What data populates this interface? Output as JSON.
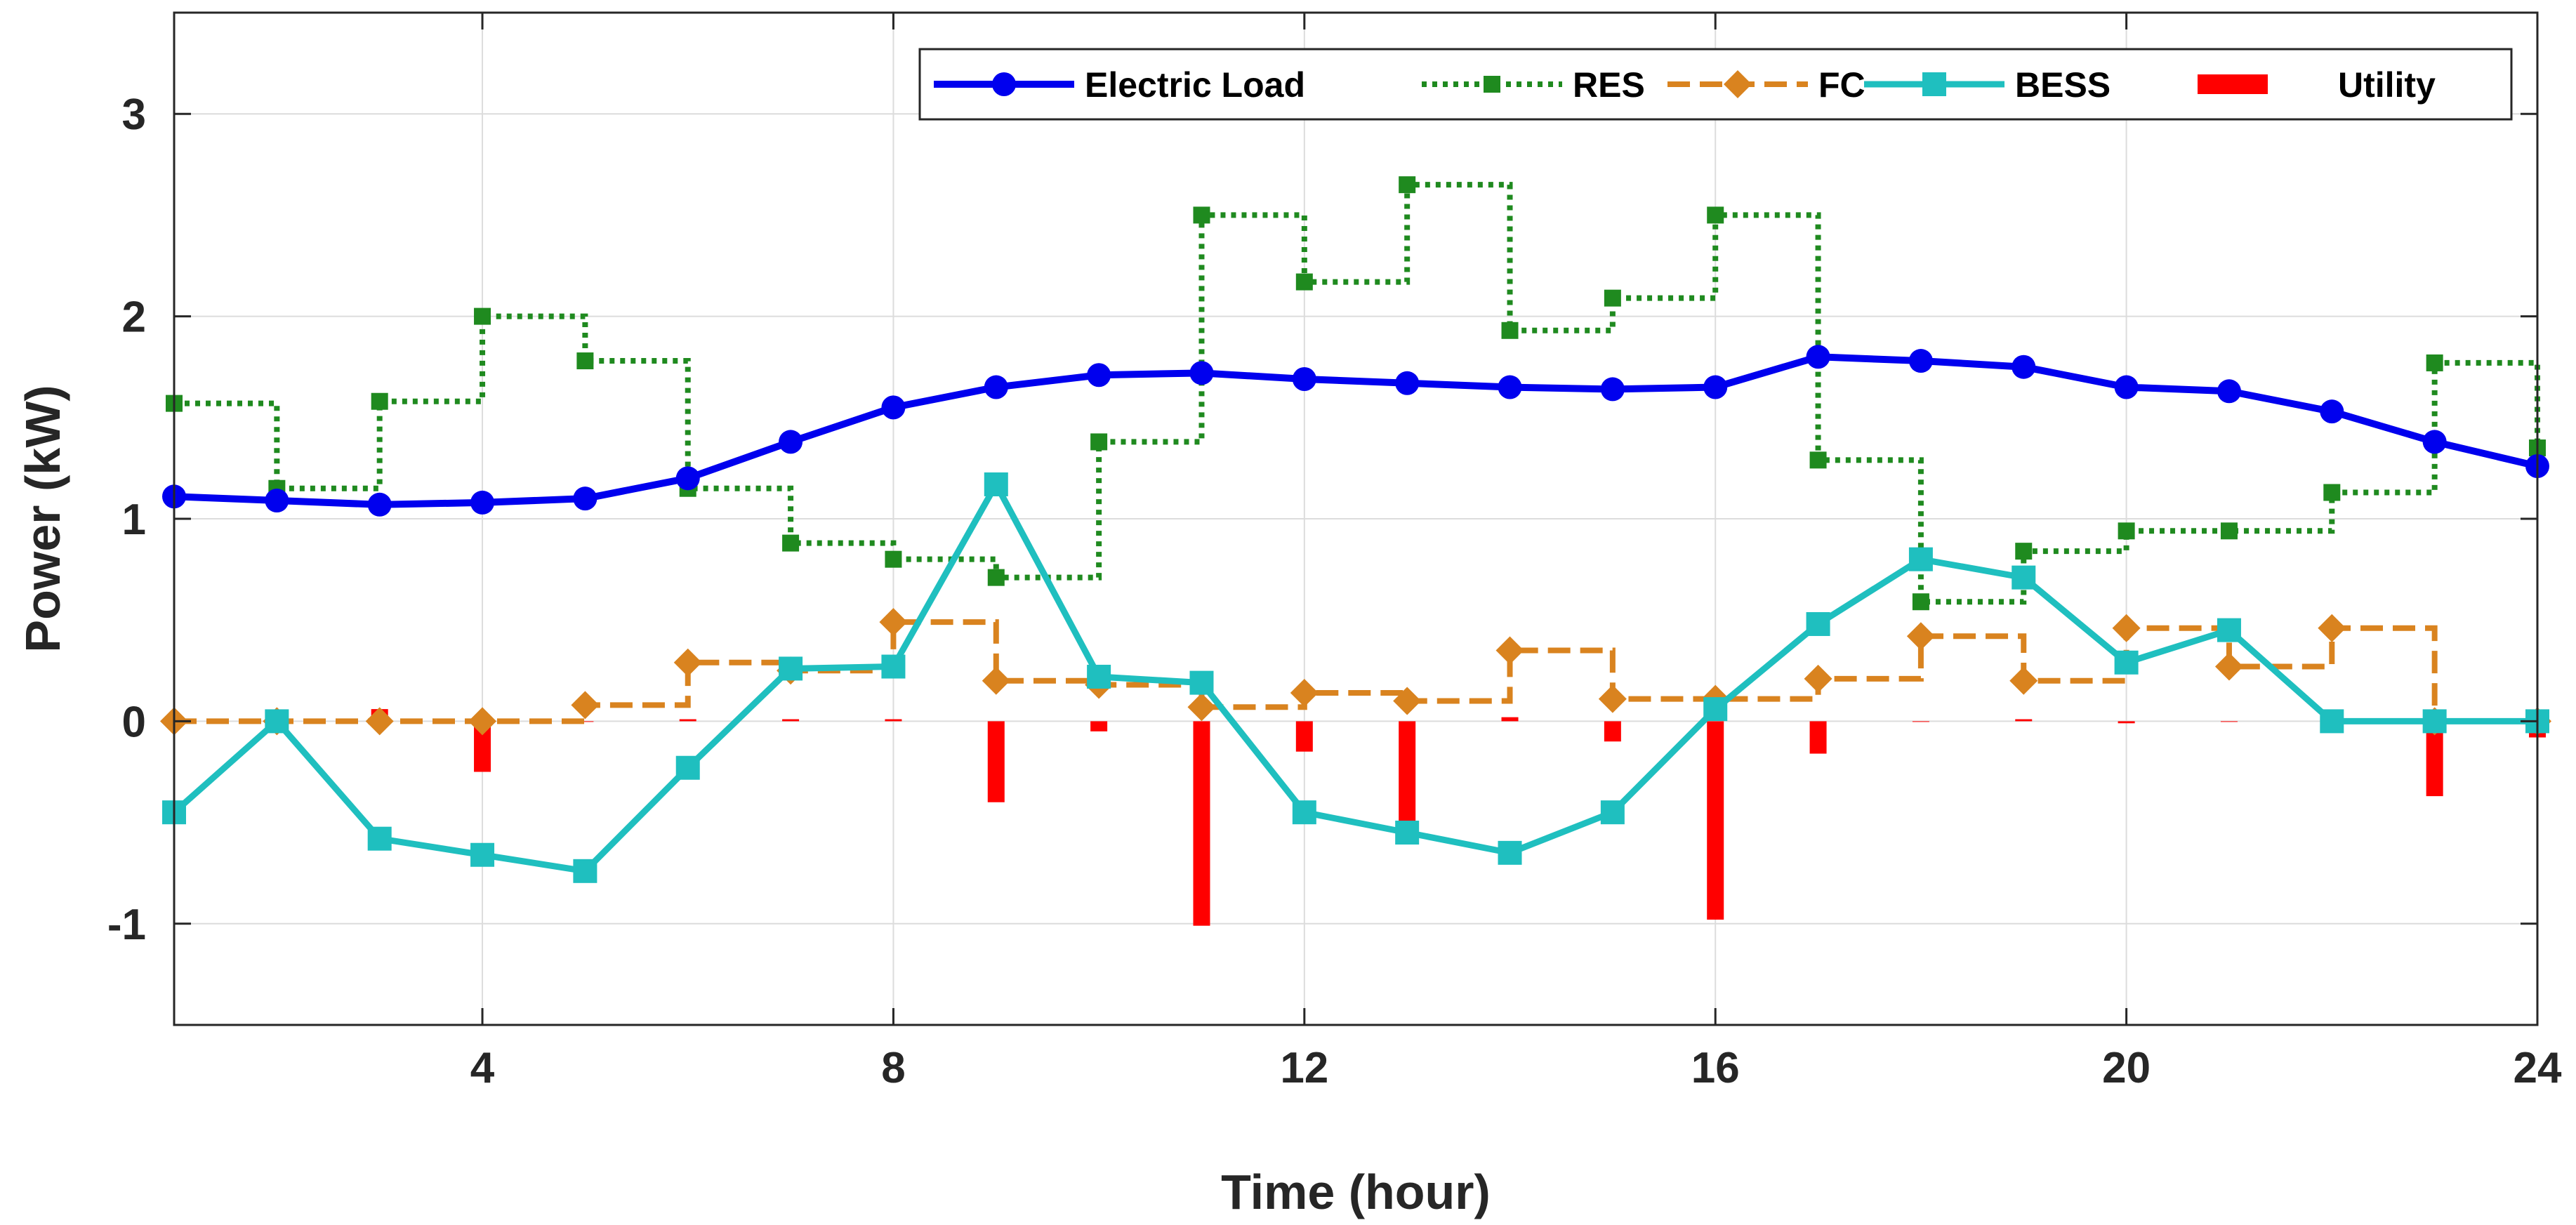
{
  "chart_data": {
    "type": "line",
    "xlabel": "Time (hour)",
    "ylabel": "Power (kW)",
    "xlim": [
      1,
      24
    ],
    "ylim": [
      -1.5,
      3.5
    ],
    "xticks": [
      4,
      8,
      12,
      16,
      20,
      24
    ],
    "yticks": [
      -1,
      0,
      1,
      2,
      3
    ],
    "grid": true,
    "legend_position": "top-right",
    "x": [
      1,
      2,
      3,
      4,
      5,
      6,
      7,
      8,
      9,
      10,
      11,
      12,
      13,
      14,
      15,
      16,
      17,
      18,
      19,
      20,
      21,
      22,
      23,
      24
    ],
    "series": [
      {
        "name": "Electric Load",
        "style": "line-circle",
        "color": "#0000ee",
        "values": [
          1.11,
          1.09,
          1.07,
          1.08,
          1.1,
          1.2,
          1.38,
          1.55,
          1.65,
          1.71,
          1.72,
          1.69,
          1.67,
          1.65,
          1.64,
          1.65,
          1.8,
          1.78,
          1.75,
          1.65,
          1.63,
          1.53,
          1.38,
          1.26
        ]
      },
      {
        "name": "RES",
        "style": "stairs-dotted-square",
        "color": "#1f8a1f",
        "values": [
          1.57,
          1.15,
          1.58,
          2.0,
          1.78,
          1.15,
          0.88,
          0.8,
          0.71,
          1.38,
          2.5,
          2.17,
          2.65,
          1.93,
          2.09,
          2.5,
          1.29,
          0.59,
          0.84,
          0.94,
          0.94,
          1.13,
          1.77,
          1.35
        ]
      },
      {
        "name": "FC",
        "style": "stairs-dashed-diamond",
        "color": "#d9831f",
        "values": [
          0.0,
          0.0,
          0.0,
          0.0,
          0.08,
          0.29,
          0.25,
          0.49,
          0.2,
          0.18,
          0.07,
          0.14,
          0.1,
          0.35,
          0.11,
          0.11,
          0.21,
          0.42,
          0.2,
          0.46,
          0.27,
          0.46,
          0.0,
          0.0
        ]
      },
      {
        "name": "BESS",
        "style": "line-square",
        "color": "#1fbfbf",
        "values": [
          -0.45,
          0.0,
          -0.58,
          -0.66,
          -0.74,
          -0.23,
          0.26,
          0.27,
          1.17,
          0.22,
          0.19,
          -0.45,
          -0.55,
          -0.65,
          -0.45,
          0.06,
          0.48,
          0.8,
          0.71,
          0.29,
          0.45,
          0.0,
          0.0,
          0.0
        ]
      },
      {
        "name": "Utility",
        "style": "bar",
        "color": "#ff0000",
        "values": [
          0.0,
          0.0,
          0.06,
          -0.25,
          0.0,
          0.01,
          0.01,
          0.01,
          -0.4,
          -0.05,
          -1.01,
          -0.15,
          -0.5,
          0.02,
          -0.1,
          -0.98,
          -0.16,
          0.0,
          0.01,
          -0.01,
          0.0,
          -0.05,
          -0.37,
          -0.08
        ]
      }
    ]
  }
}
